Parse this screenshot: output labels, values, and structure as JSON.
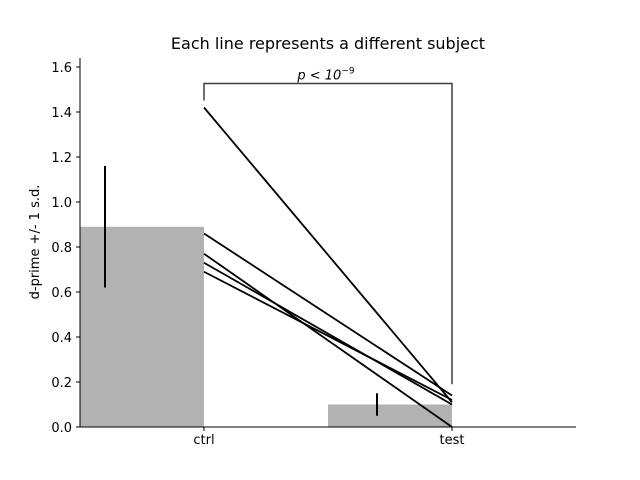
{
  "chart_data": {
    "type": "bar",
    "title": "Each line represents a different subject",
    "xlabel": "",
    "ylabel": "d-prime +/- 1 s.d.",
    "categories": [
      "ctrl",
      "test"
    ],
    "bars": [
      {
        "category": "ctrl",
        "value": 0.89,
        "sd_low": 0.62,
        "sd_high": 1.16
      },
      {
        "category": "test",
        "value": 0.1,
        "sd_low": 0.05,
        "sd_high": 0.15
      }
    ],
    "subjects": [
      {
        "ctrl": 1.42,
        "test": 0.11
      },
      {
        "ctrl": 0.86,
        "test": 0.14
      },
      {
        "ctrl": 0.77,
        "test": 0.0
      },
      {
        "ctrl": 0.73,
        "test": 0.1
      },
      {
        "ctrl": 0.69,
        "test": 0.12
      }
    ],
    "significance": {
      "from": "ctrl",
      "to": "test",
      "label_base": "p < 10",
      "label_exponent": "−9"
    },
    "yticks": [
      0.0,
      0.2,
      0.4,
      0.6,
      0.8,
      1.0,
      1.2,
      1.4,
      1.6
    ],
    "ylim": [
      0,
      1.64
    ],
    "grid": false,
    "colors": {
      "bar": "#b2b2b2",
      "line": "#000000",
      "bracket": "#404040"
    }
  }
}
